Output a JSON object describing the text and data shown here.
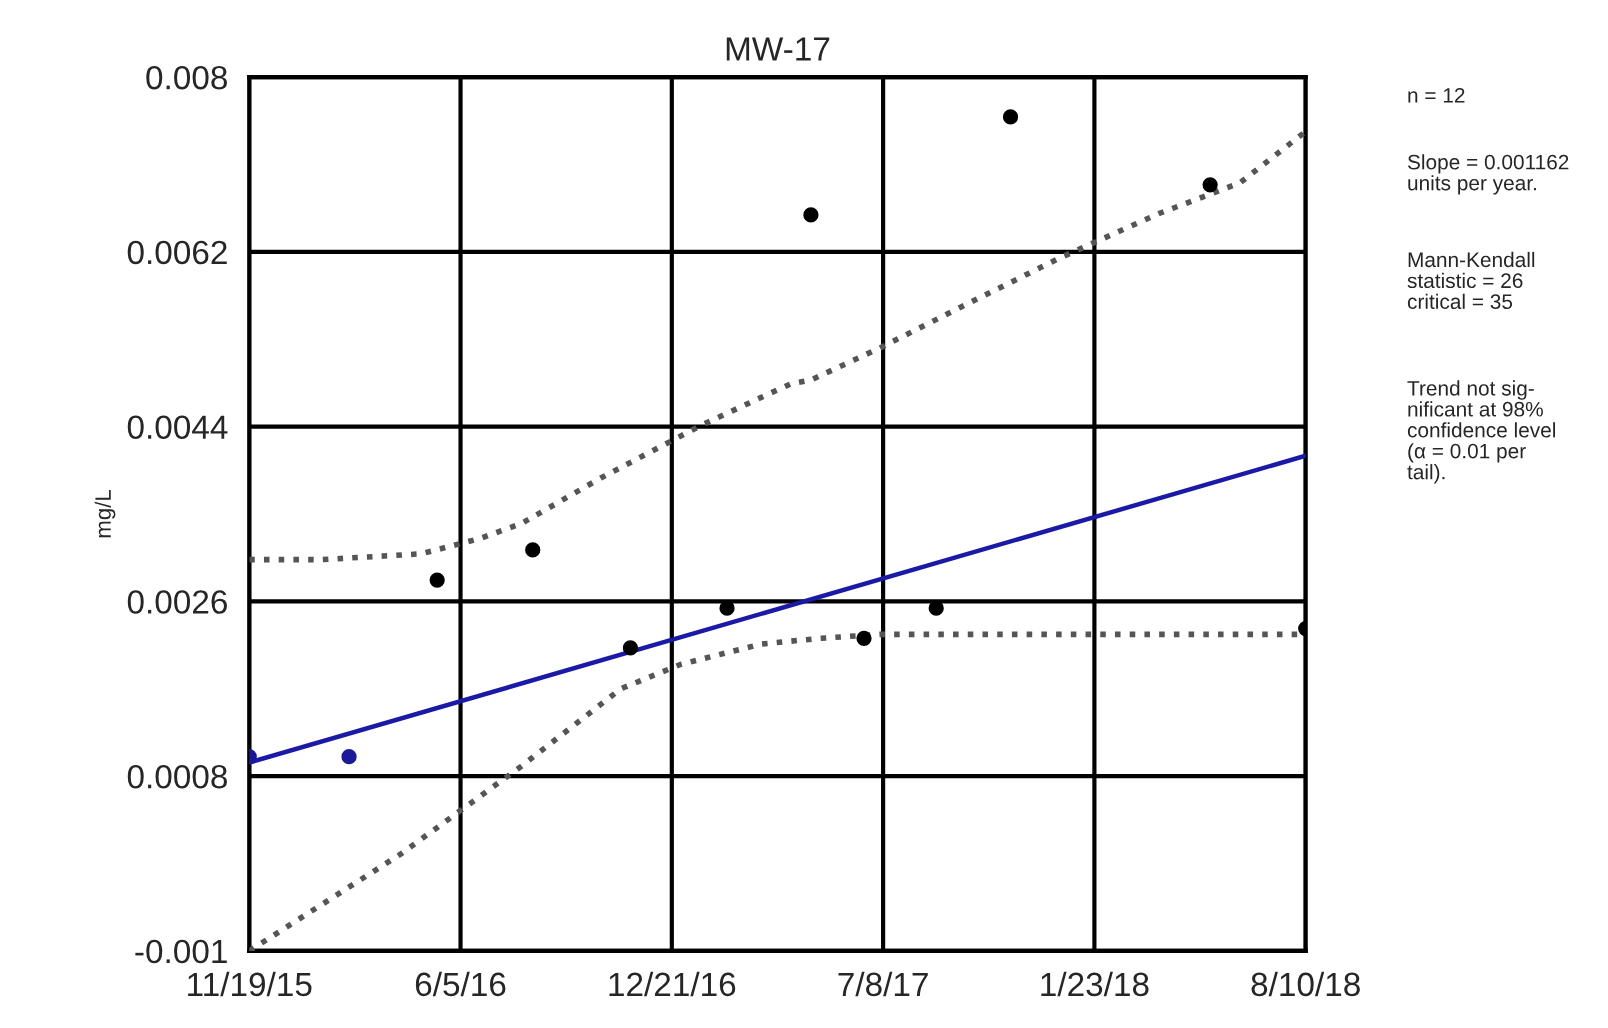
{
  "chart_data": {
    "type": "scatter",
    "title": "MW-17",
    "ylabel": "mg/L",
    "xlim": [
      "2015-11-19",
      "2018-08-10"
    ],
    "xticks": [
      {
        "value": "2015-11-19",
        "label": "11/19/15"
      },
      {
        "value": "2016-06-05",
        "label": "6/5/16"
      },
      {
        "value": "2016-12-21",
        "label": "12/21/16"
      },
      {
        "value": "2017-07-08",
        "label": "7/8/17"
      },
      {
        "value": "2018-01-23",
        "label": "1/23/18"
      },
      {
        "value": "2018-08-10",
        "label": "8/10/18"
      }
    ],
    "ylim": [
      -0.001,
      0.008
    ],
    "yticks": [
      -0.001,
      0.0008,
      0.0026,
      0.0044,
      0.0062,
      0.008
    ],
    "grid": true,
    "series": [
      {
        "color": "#000000",
        "marker": "circle",
        "x": [
          "2016-05-14",
          "2016-08-12",
          "2016-11-12",
          "2017-02-11",
          "2017-05-01",
          "2017-06-20",
          "2017-08-27",
          "2017-11-05",
          "2018-05-12",
          "2018-08-10"
        ],
        "values": [
          0.00282,
          0.00313,
          0.00212,
          0.00253,
          0.00658,
          0.00222,
          0.00253,
          0.00759,
          0.00689,
          0.00232
        ]
      },
      {
        "color": "#1a1a99",
        "marker": "circle",
        "x": [
          "2015-11-19",
          "2016-02-21"
        ],
        "values": [
          0.001,
          0.001
        ]
      },
      {
        "type": "line",
        "color": "#1a1aa6",
        "line_style": "solid",
        "marker": "none",
        "x": [
          "2015-11-19",
          "2018-08-10"
        ],
        "values": [
          0.00094,
          0.0041
        ]
      },
      {
        "type": "line",
        "color": "#555555",
        "line_style": "dotted",
        "marker": "none",
        "x": [
          "2015-11-19",
          "2016-01-26",
          "2016-04-29",
          "2016-06-24",
          "2016-08-01",
          "2016-10-15",
          "2017-01-17",
          "2017-03-15",
          "2017-04-12",
          "2017-05-01",
          "2017-07-05",
          "2017-09-19",
          "2017-12-22",
          "2018-03-26",
          "2018-06-09",
          "2018-08-10"
        ],
        "values": [
          0.00303,
          0.00303,
          0.00309,
          0.00325,
          0.0034,
          0.00387,
          0.00441,
          0.0047,
          0.00484,
          0.00488,
          0.00521,
          0.00563,
          0.00614,
          0.0066,
          0.00691,
          0.00744
        ]
      },
      {
        "type": "line",
        "color": "#555555",
        "line_style": "dotted",
        "marker": "none",
        "x": [
          "2015-11-19",
          "2016-04-10",
          "2016-08-01",
          "2016-11-03",
          "2016-12-29",
          "2017-03-15",
          "2017-05-10",
          "2017-07-05",
          "2017-10-26",
          "2018-08-10"
        ],
        "values": [
          -0.001,
          0.0,
          0.0009,
          0.0017,
          0.00195,
          0.00216,
          0.00222,
          0.00226,
          0.00226,
          0.00226
        ]
      }
    ],
    "annotations": [
      "n = 12",
      "Slope = 0.001162\nunits per year.",
      "Mann-Kendall\nstatistic = 26\ncritical = 35",
      "Trend not sig-\nnificant at 98%\nconfidence level\n(α = 0.01 per\ntail)."
    ]
  }
}
